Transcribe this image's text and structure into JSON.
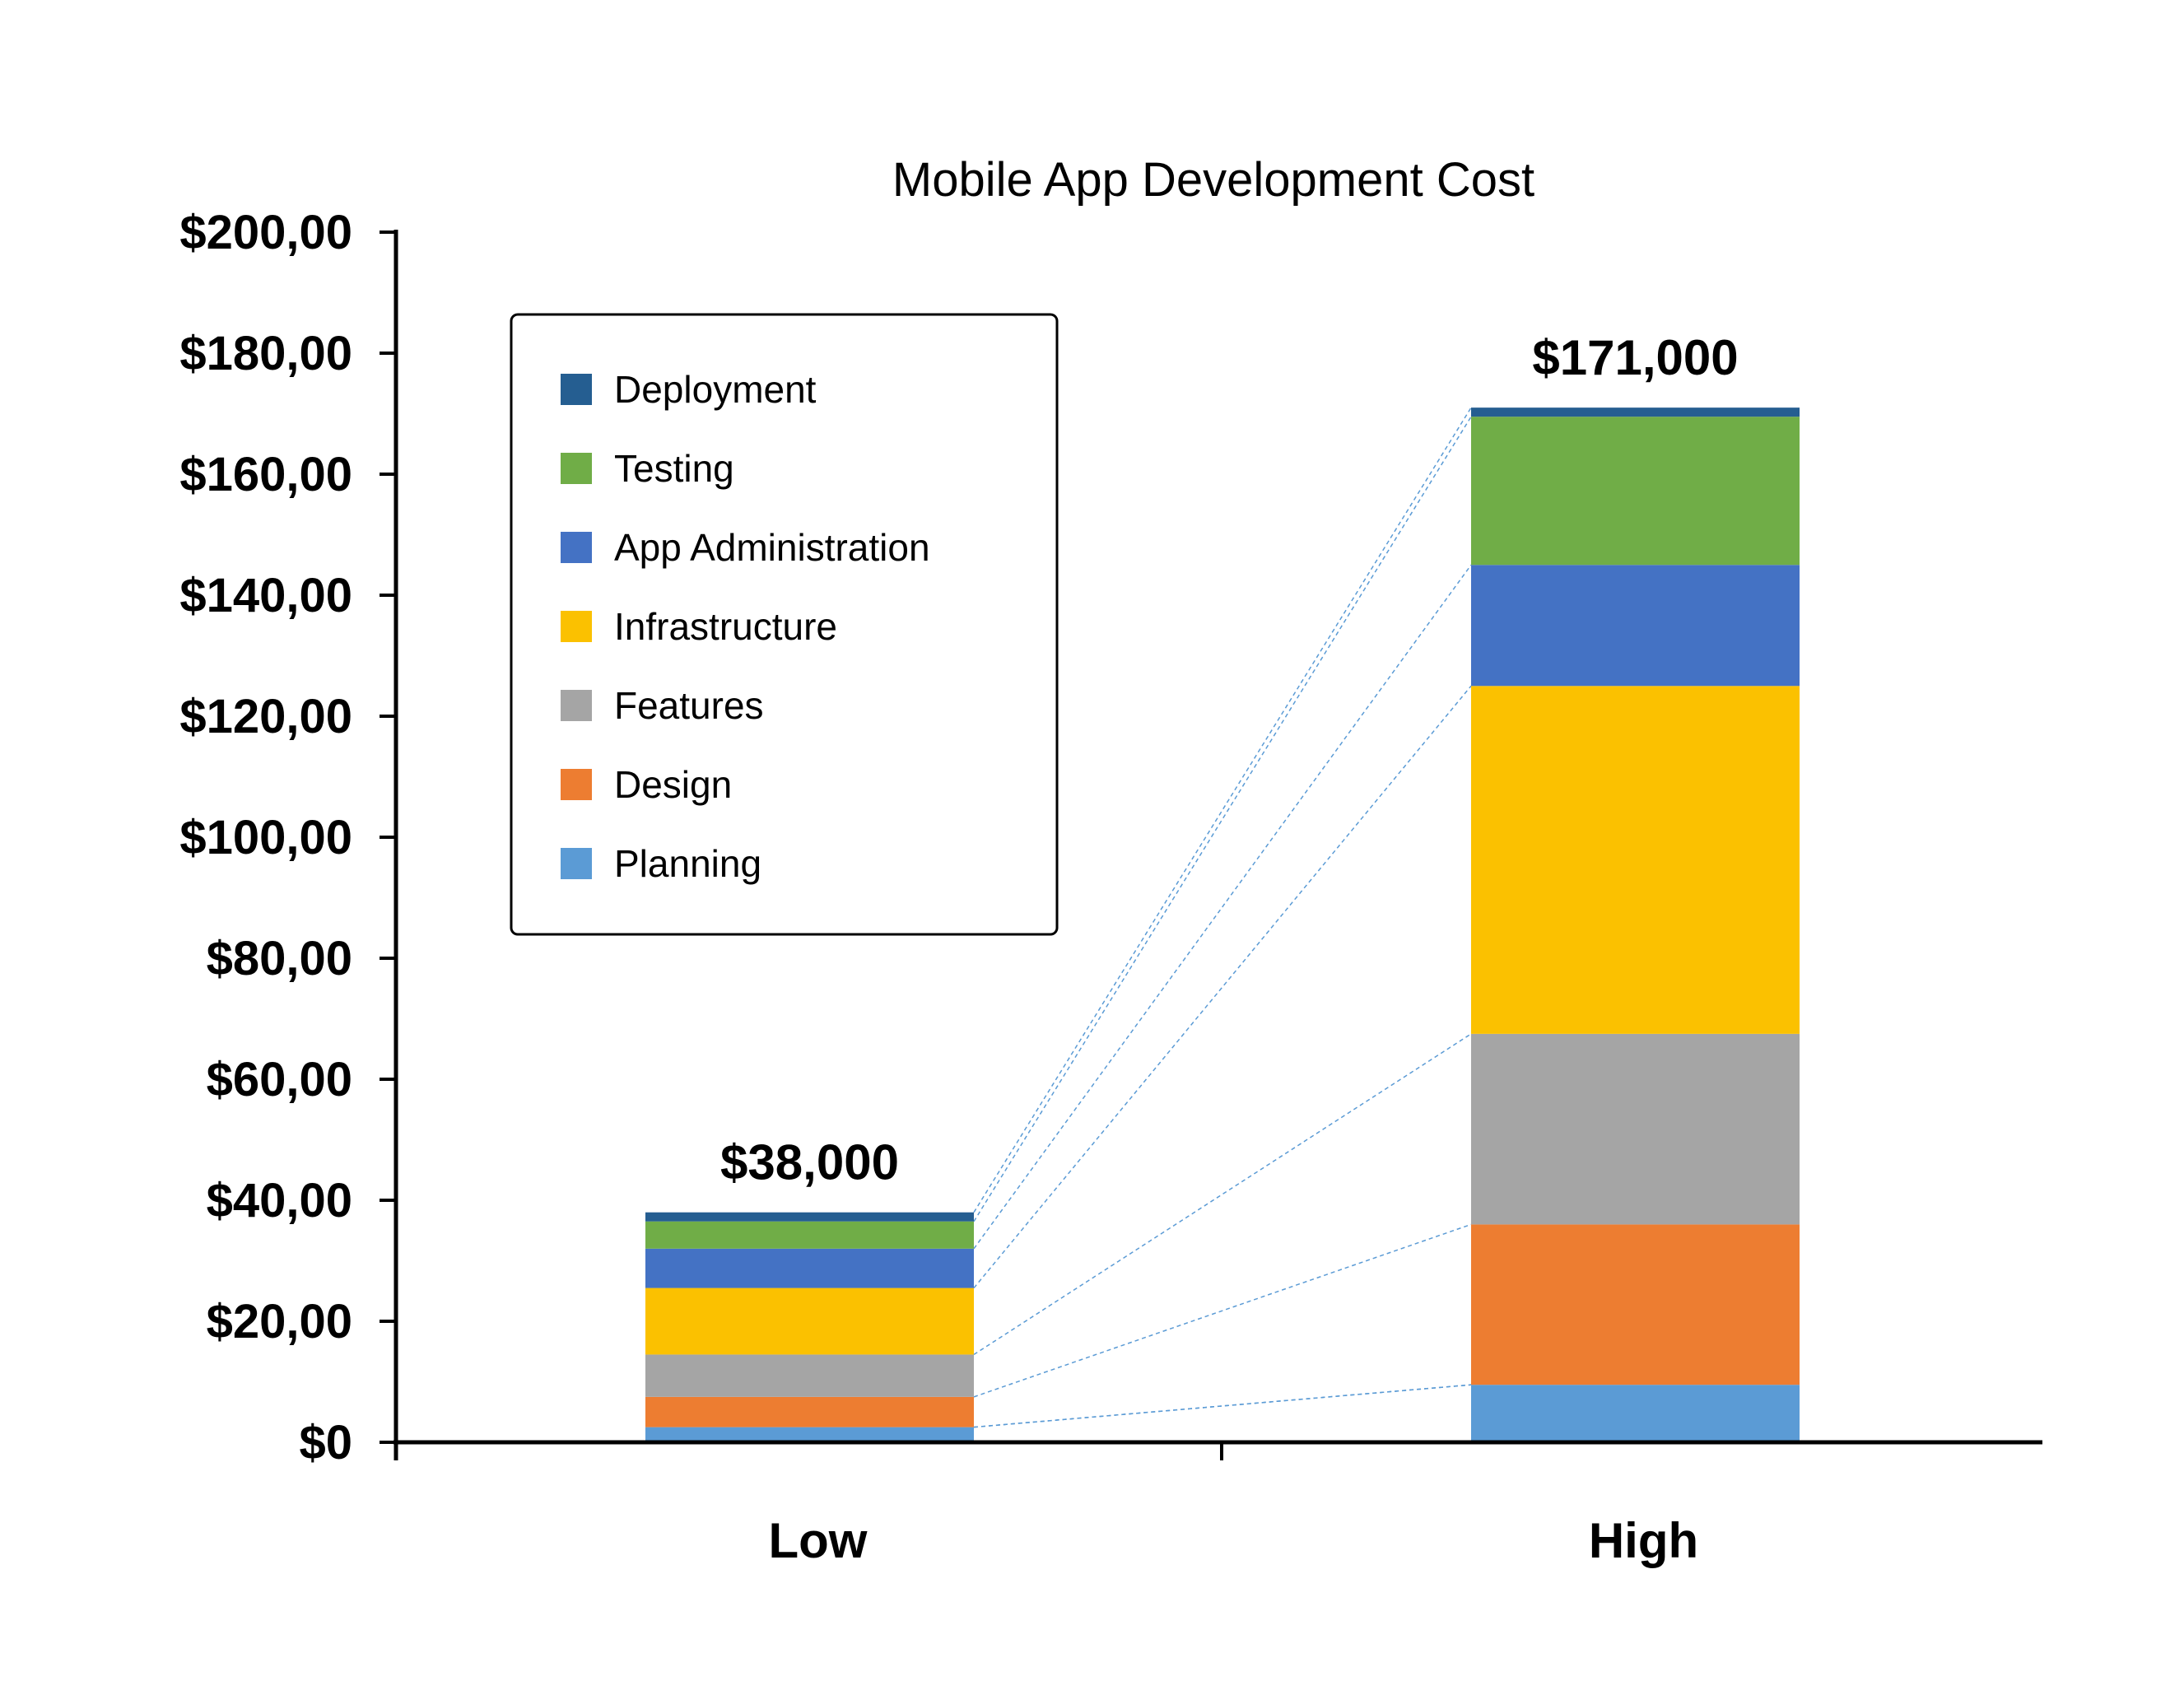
{
  "chart_data": {
    "type": "bar",
    "stacked": true,
    "title": "Mobile App Development Cost",
    "xlabel": "",
    "ylabel": "",
    "ylim": [
      0,
      200000
    ],
    "y_ticks": [
      {
        "value": 0,
        "label": "$0"
      },
      {
        "value": 20000,
        "label": "$20,00"
      },
      {
        "value": 40000,
        "label": "$40,00"
      },
      {
        "value": 60000,
        "label": "$60,00"
      },
      {
        "value": 80000,
        "label": "$80,00"
      },
      {
        "value": 100000,
        "label": "$100,00"
      },
      {
        "value": 120000,
        "label": "$120,00"
      },
      {
        "value": 140000,
        "label": "$140,00"
      },
      {
        "value": 160000,
        "label": "$160,00"
      },
      {
        "value": 180000,
        "label": "$180,00"
      },
      {
        "value": 200000,
        "label": "$200,00"
      }
    ],
    "categories": [
      "Low",
      "High"
    ],
    "totals": [
      "$38,000",
      "$171,000"
    ],
    "legend_position": "top-left",
    "series": [
      {
        "name": "Planning",
        "color": "#5b9bd5",
        "values": [
          2500,
          9500
        ]
      },
      {
        "name": "Design",
        "color": "#ed7d31",
        "values": [
          5000,
          26500
        ]
      },
      {
        "name": "Features",
        "color": "#a5a5a5",
        "values": [
          7000,
          31500
        ]
      },
      {
        "name": "Infrastructure",
        "color": "#fbc100",
        "values": [
          11000,
          57500
        ]
      },
      {
        "name": "App Administration",
        "color": "#4472c4",
        "values": [
          6500,
          20000
        ]
      },
      {
        "name": "Testing",
        "color": "#70ad47",
        "values": [
          4500,
          24500
        ]
      },
      {
        "name": "Deployment",
        "color": "#255e91",
        "values": [
          1500,
          1500
        ]
      }
    ],
    "series_lines": true
  }
}
